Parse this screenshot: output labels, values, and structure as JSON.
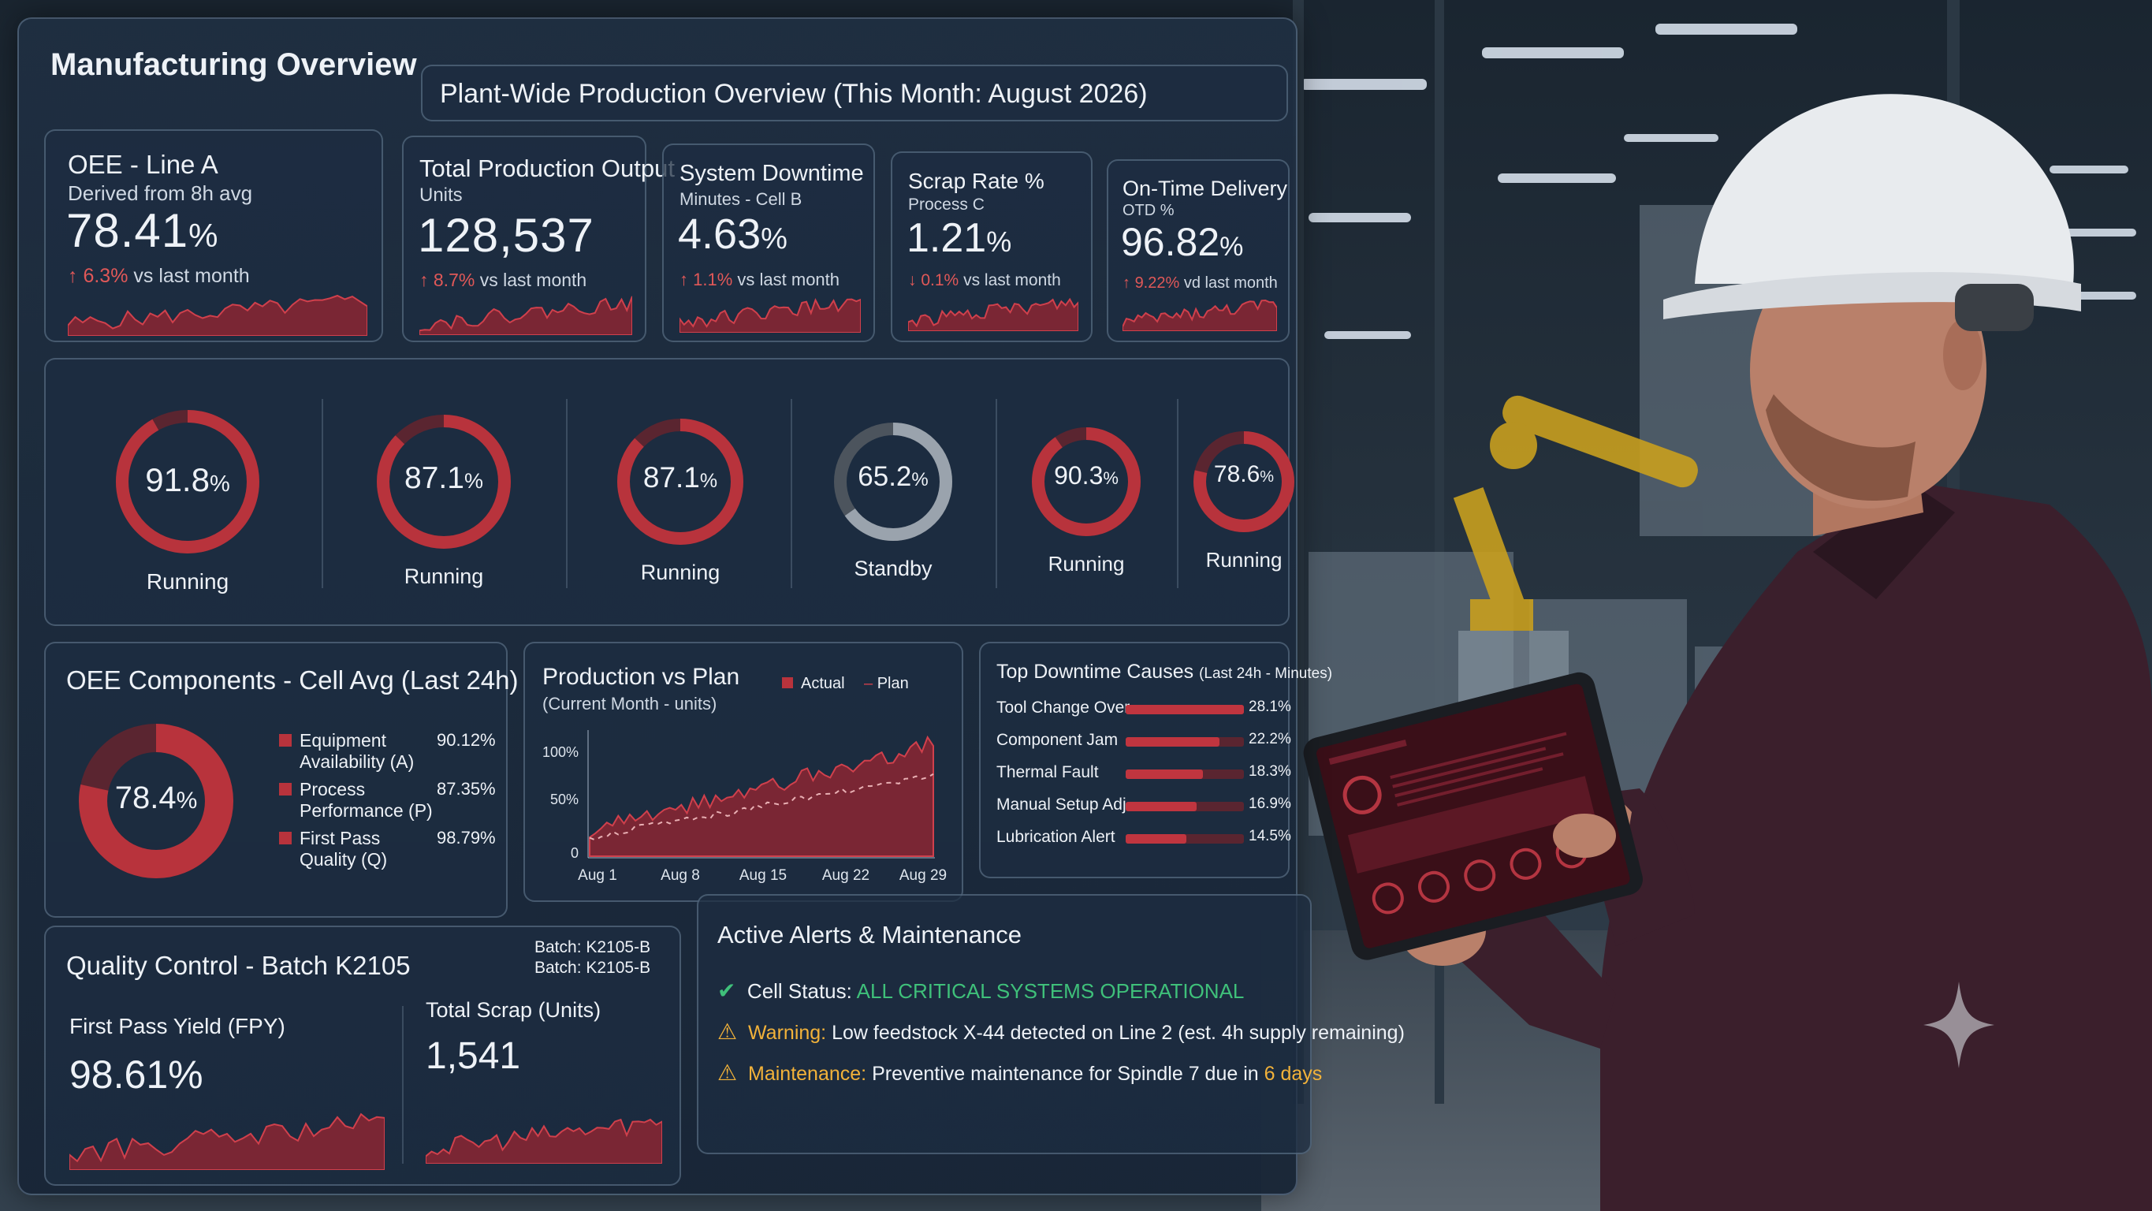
{
  "header": {
    "app_title": "Manufacturing Overview",
    "overview_title": "Plant-Wide Production Overview (This Month: August 2026)"
  },
  "kpis": [
    {
      "title": "OEE - Line A",
      "subtitle": "Derived from 8h avg",
      "value": "78.41",
      "unit": "%",
      "delta": "6.3%",
      "delta_dir": "up",
      "delta_text": "vs last month"
    },
    {
      "title": "Total Production Output",
      "subtitle": "Units",
      "value": "128,537",
      "unit": "",
      "delta": "8.7%",
      "delta_dir": "up",
      "delta_text": "vs last month"
    },
    {
      "title": "System Downtime",
      "subtitle": "Minutes - Cell B",
      "value": "4.63",
      "unit": "%",
      "delta": "1.1%",
      "delta_dir": "up",
      "delta_text": "vs last month"
    },
    {
      "title": "Scrap Rate %",
      "subtitle": "Process C",
      "value": "1.21",
      "unit": "%",
      "delta": "0.1%",
      "delta_dir": "down",
      "delta_text": "vs last month"
    },
    {
      "title": "On-Time Delivery",
      "subtitle": "OTD %",
      "value": "96.82",
      "unit": "%",
      "delta": "9.22%",
      "delta_dir": "up",
      "delta_text": "vd last month"
    }
  ],
  "machines": [
    {
      "value": "91.8",
      "unit": "%",
      "status": "Running",
      "fraction": 0.918
    },
    {
      "value": "87.1",
      "unit": "%",
      "status": "Running",
      "fraction": 0.871
    },
    {
      "value": "87.1",
      "unit": "%",
      "status": "Running",
      "fraction": 0.871
    },
    {
      "value": "65.2",
      "unit": "%",
      "status": "Standby",
      "fraction": 0.652
    },
    {
      "value": "90.3",
      "unit": "%",
      "status": "Running",
      "fraction": 0.903
    },
    {
      "value": "78.6",
      "unit": "%",
      "status": "Running",
      "fraction": 0.786
    }
  ],
  "oee_components": {
    "title": "OEE Components - Cell Avg (Last 24h)",
    "center_value": "78.4",
    "center_unit": "%",
    "fraction": 0.784,
    "items": [
      {
        "label_1": "Equipment",
        "label_2": "Availability (A)",
        "value": "90.12%"
      },
      {
        "label_1": "Process",
        "label_2": "Performance (P)",
        "value": "87.35%"
      },
      {
        "label_1": "First Pass",
        "label_2": "Quality (Q)",
        "value": "98.79%"
      }
    ]
  },
  "production_vs_plan": {
    "title": "Production vs Plan",
    "subtitle": "(Current Month - units)",
    "legend_actual": "Actual",
    "legend_plan": "Plan",
    "y_ticks": [
      "100%",
      "50%",
      "0"
    ],
    "x_ticks": [
      "Aug 1",
      "Aug 8",
      "Aug 15",
      "Aug 22",
      "Aug 29"
    ]
  },
  "downtime_causes": {
    "title": "Top Downtime Causes",
    "subtitle": "(Last 24h - Minutes)",
    "items": [
      {
        "label": "Tool Change Over",
        "value": "28.1%",
        "fraction": 0.281
      },
      {
        "label": "Component Jam",
        "value": "22.2%",
        "fraction": 0.222
      },
      {
        "label": "Thermal Fault",
        "value": "18.3%",
        "fraction": 0.183
      },
      {
        "label": "Manual Setup Adj.",
        "value": "16.9%",
        "fraction": 0.169
      },
      {
        "label": "Lubrication Alert",
        "value": "14.5%",
        "fraction": 0.145
      }
    ]
  },
  "quality": {
    "title": "Quality Control - Batch K2105",
    "batch_1": "Batch: K2105-B",
    "batch_2": "Batch: K2105-B",
    "fpy_label": "First Pass Yield (FPY)",
    "fpy_value": "98.61%",
    "scrap_label": "Total Scrap (Units)",
    "scrap_value": "1,541"
  },
  "alerts": {
    "title": "Active Alerts & Maintenance",
    "items": [
      {
        "icon": "check-circle-icon",
        "prefix": "Cell Status:",
        "prefix_color": "#e9eef5",
        "text": "",
        "highlight": "ALL CRITICAL SYSTEMS OPERATIONAL",
        "highlight_color": "#3fc07a"
      },
      {
        "icon": "warning-icon",
        "prefix": "Warning:",
        "prefix_color": "#f2b23a",
        "text": "Low feedstock X-44 detected on Line 2 (est. 4h supply remaining)",
        "highlight": "",
        "highlight_color": ""
      },
      {
        "icon": "warning-icon",
        "prefix": "Maintenance:",
        "prefix_color": "#f2b23a",
        "text": "Preventive maintenance for Spindle 7 due in",
        "highlight": "6 days",
        "highlight_color": "#f2b23a"
      }
    ]
  },
  "colors": {
    "accent": "#b8333c",
    "ring_track": "#5a2530",
    "standby": "#9aa3ad",
    "ok": "#3fc07a",
    "warn": "#f2b23a"
  }
}
